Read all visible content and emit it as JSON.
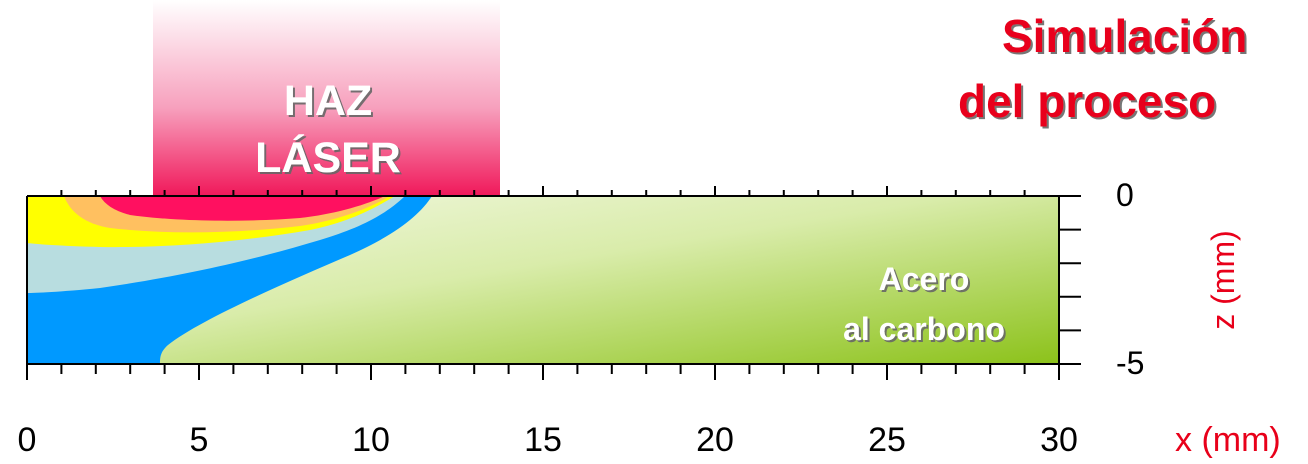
{
  "title": {
    "line1": "Simulación",
    "line2": "del proceso"
  },
  "beam_label": {
    "line1": "HAZ",
    "line2": "LÁSER"
  },
  "material_label": {
    "line1": "Acero",
    "line2": "al carbono"
  },
  "x_axis": {
    "label": "x (mm)",
    "min": 0,
    "max": 30,
    "major_ticks": [
      0,
      5,
      10,
      15,
      20,
      25,
      30
    ],
    "minor_step": 1
  },
  "z_axis": {
    "label": "z (mm)",
    "min": -5,
    "max": 0,
    "tick_labels": [
      0,
      -5
    ],
    "minor_step": 1
  },
  "beam_extent_mm": [
    3.7,
    13.8
  ],
  "colors": {
    "title": "#e8001a",
    "axis_label": "#e8001a",
    "beam": "#f0185a",
    "material_light": "#eef5d8",
    "material_dark": "#8cc21a",
    "zone_blue": "#0099ff",
    "zone_lightblue": "#b8dde0",
    "zone_yellow": "#ffff00",
    "zone_orange": "#ffc060",
    "zone_red": "#ff1060"
  }
}
